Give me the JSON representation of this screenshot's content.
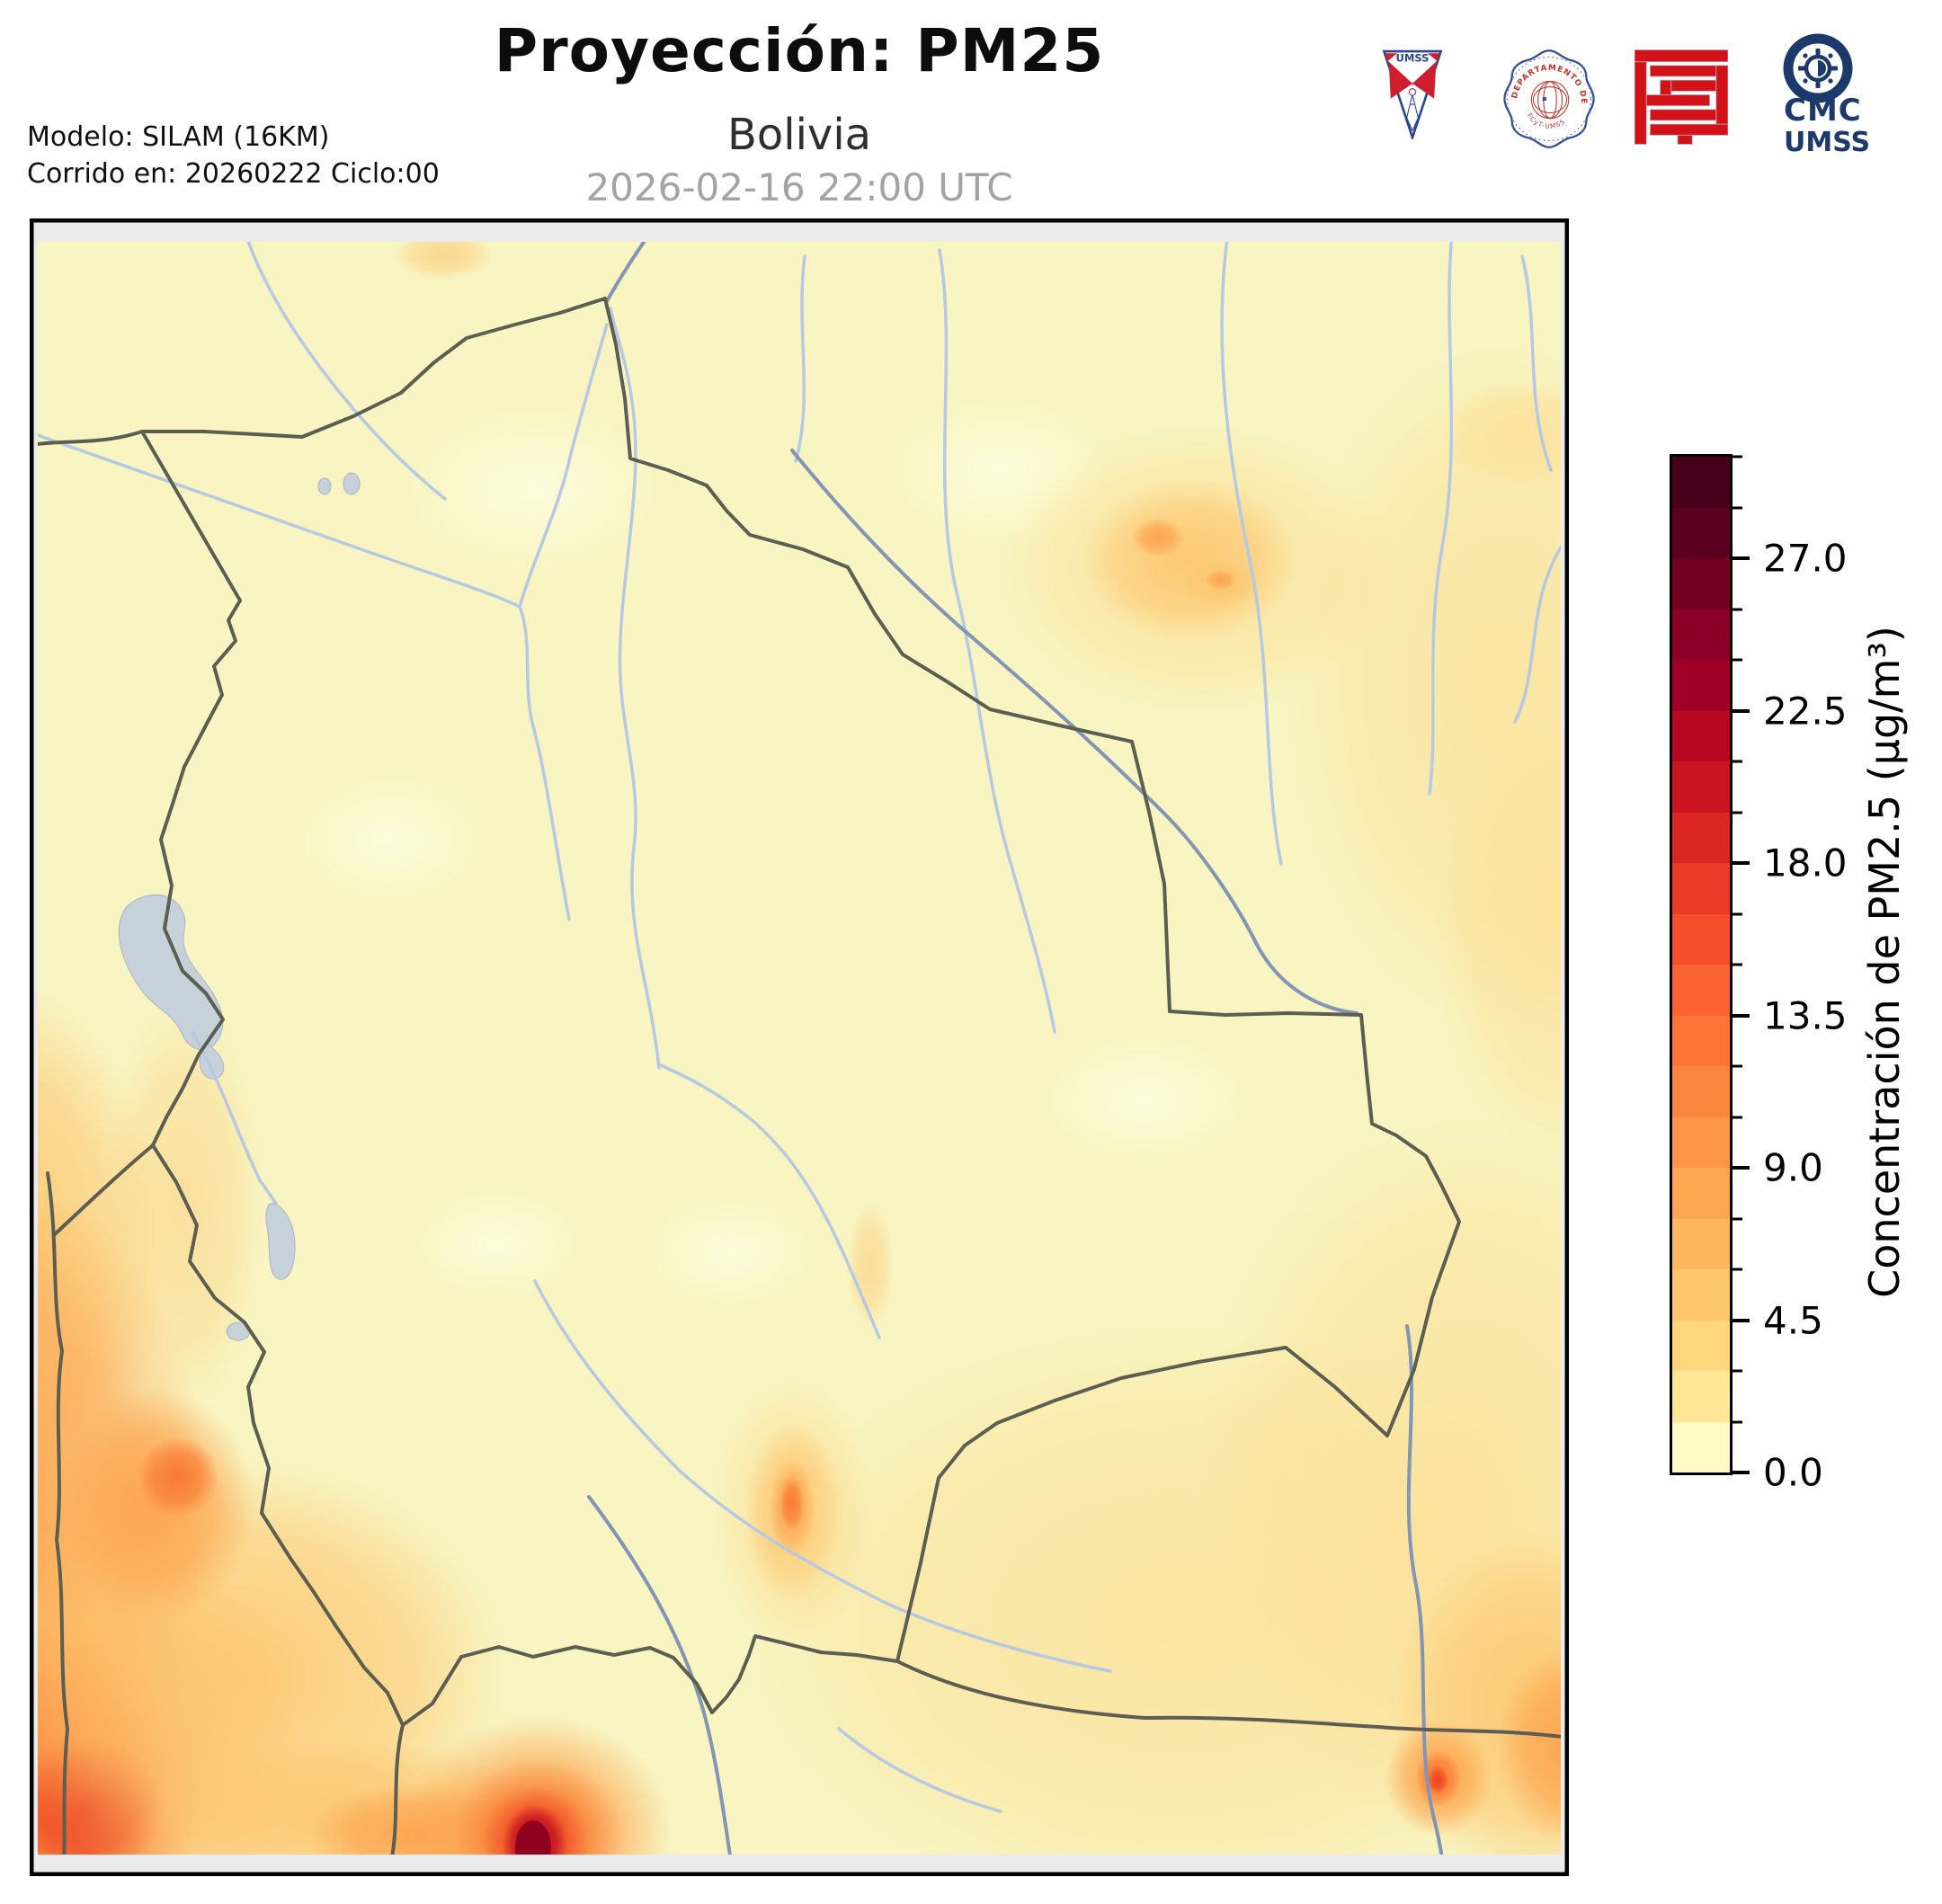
{
  "header": {
    "title": "Proyección: PM25",
    "subtitle": "Bolivia",
    "timestamp": "2026-02-16 22:00 UTC",
    "model_line1": "Modelo: SILAM (16KM)",
    "model_line2": "Corrido en: 20260222 Ciclo:00",
    "logos": [
      {
        "name": "umss-shield",
        "label": "UMSS"
      },
      {
        "name": "departamento-fisica-seal",
        "label": "DEPARTAMENTO DE FÍSICA",
        "sublabel": "FCyT-UMSS"
      },
      {
        "name": "fcyt-red-logo",
        "label": ""
      },
      {
        "name": "cmc-umss",
        "line1": "CMC",
        "line2": "UMSS"
      }
    ]
  },
  "colorbar": {
    "label": "Concentración de PM2.5 (µg/m³)",
    "vmin": 0,
    "vmax": 30,
    "minor_step": 1.5,
    "major_ticks": [
      {
        "value": 27.0,
        "label": "27.0"
      },
      {
        "value": 22.5,
        "label": "22.5"
      },
      {
        "value": 18.0,
        "label": "18.0"
      },
      {
        "value": 13.5,
        "label": "13.5"
      },
      {
        "value": 9.0,
        "label": "9.0"
      },
      {
        "value": 4.5,
        "label": "4.5"
      },
      {
        "value": 0.0,
        "label": "0.0"
      }
    ],
    "segment_colors_top_to_bottom": [
      "#470019",
      "#5c001f",
      "#720023",
      "#8a0026",
      "#a10026",
      "#b70723",
      "#ca1521",
      "#dc2621",
      "#eb3a25",
      "#f44f2a",
      "#f96231",
      "#fc7537",
      "#fd863e",
      "#fd9747",
      "#fda851",
      "#feb75d",
      "#fec76b",
      "#fed67c",
      "#ffe795",
      "#fffac6"
    ]
  },
  "map": {
    "colors": {
      "bg": "#f8f5c2",
      "river": "#b6c9e2",
      "river-dark": "#8096b4",
      "border": "#5d5e52",
      "lake": "#c7d1da",
      "lake-stroke": "#a9b7c4",
      "offdomain": "#ebebeb",
      "frame": "#000000"
    }
  },
  "chart_data": {
    "type": "heatmap",
    "title": "Proyección: PM25",
    "subtitle": "Bolivia",
    "valid_time": "2026-02-16 22:00 UTC",
    "model": "SILAM (16KM)",
    "run_date": "20260222",
    "run_cycle": "00",
    "variable": "Concentración de PM2.5 (µg/m³)",
    "colorbar_ticks": [
      0.0,
      4.5,
      9.0,
      13.5,
      18.0,
      22.5,
      27.0
    ],
    "value_range": [
      0,
      30
    ],
    "contour_interval": 1.5,
    "legend_position": "right",
    "region": "Bolivia and surrounding countries",
    "features": [
      {
        "area": "western Andes strip along Chilean border",
        "approx_value_ugm3": [
          6,
          18
        ]
      },
      {
        "area": "far south-west corner (Chile, bottom-left)",
        "approx_value_ugm3": [
          9,
          21
        ]
      },
      {
        "area": "southern border hotspot near bottom edge",
        "approx_value_ugm3": [
          24,
          30
        ]
      },
      {
        "area": "south-central Bolivia elongated plume (Chuquisaca)",
        "approx_value_ugm3": [
          6,
          10.5
        ]
      },
      {
        "area": "south-east spot near Paraguay river",
        "approx_value_ugm3": [
          7.5,
          12
        ]
      },
      {
        "area": "eastern Bolivia / Brazil border patch",
        "approx_value_ugm3": [
          4.5,
          7.5
        ]
      },
      {
        "area": "lowland Bolivia background",
        "approx_value_ugm3": [
          0,
          3
        ]
      }
    ],
    "overlays": [
      "international borders",
      "rivers",
      "lakes (Titicaca, Poopó, Coipasa)"
    ]
  }
}
